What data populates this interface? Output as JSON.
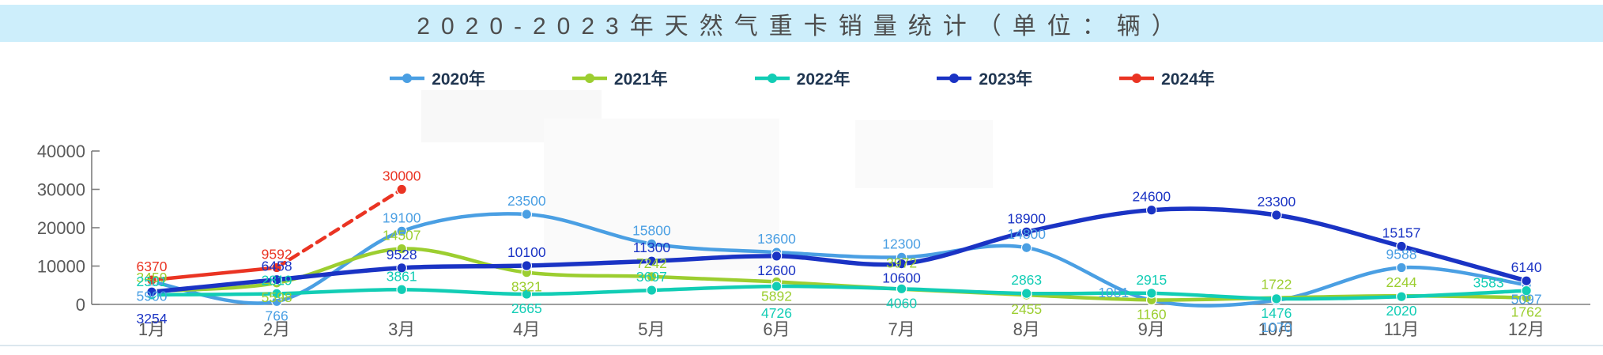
{
  "banner": {
    "title": "2020-2023年天然气重卡销量统计（单位：辆）"
  },
  "chart_data": {
    "type": "line",
    "title": "2020-2023年天然气重卡销量统计（单位：辆）",
    "unit": "辆",
    "categories": [
      "1月",
      "2月",
      "3月",
      "4月",
      "5月",
      "6月",
      "7月",
      "8月",
      "9月",
      "10月",
      "11月",
      "12月"
    ],
    "ylim": [
      0,
      40000
    ],
    "yticks": [
      0,
      10000,
      20000,
      30000,
      40000
    ],
    "grid": false,
    "legend_position": "top",
    "axis_color": "#7f7f7f",
    "tick_label_color": "#595959",
    "series": [
      {
        "name": "2020年",
        "color": "#4a9fe3",
        "smooth": true,
        "values": [
          5900,
          766,
          19100,
          23500,
          15800,
          13600,
          12300,
          14800,
          1081,
          1070,
          9588,
          5097
        ]
      },
      {
        "name": "2021年",
        "color": "#9cce30",
        "smooth": true,
        "values": [
          3459,
          5598,
          14507,
          8321,
          7242,
          5892,
          3972,
          2455,
          1160,
          1722,
          2244,
          1762
        ]
      },
      {
        "name": "2022年",
        "color": "#12cdb5",
        "smooth": true,
        "values": [
          2501,
          2819,
          3861,
          2665,
          3697,
          4726,
          4060,
          2863,
          2915,
          1476,
          2020,
          3583
        ]
      },
      {
        "name": "2023年",
        "color": "#1a33c4",
        "smooth": true,
        "values": [
          3254,
          6458,
          9528,
          10100,
          11300,
          12600,
          10600,
          18900,
          24600,
          23300,
          15157,
          6140
        ]
      },
      {
        "name": "2024年",
        "color": "#ea3423",
        "smooth": false,
        "dash_from": 1,
        "values": [
          6370,
          9592,
          30000,
          null,
          null,
          null,
          null,
          null,
          null,
          null,
          null,
          null
        ]
      }
    ]
  }
}
